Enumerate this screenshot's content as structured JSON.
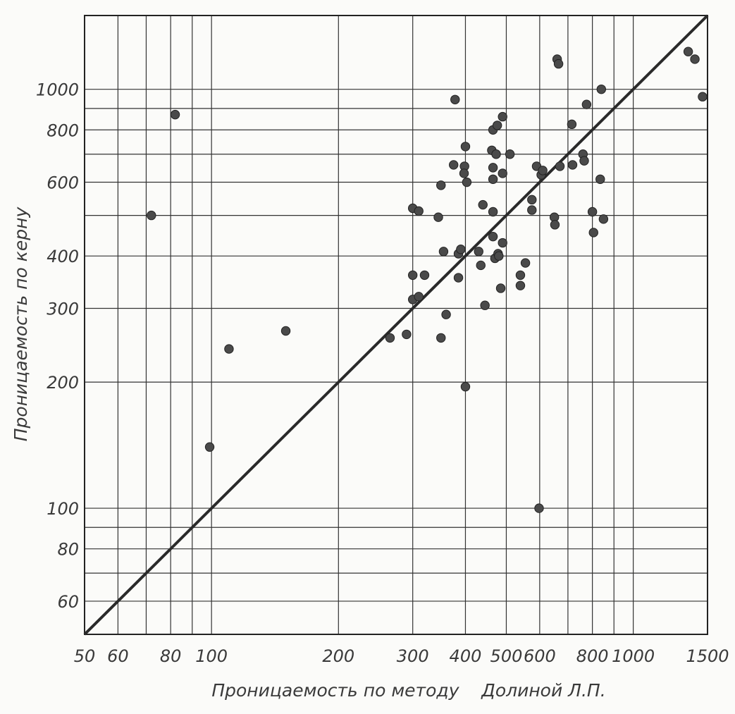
{
  "chart_data": {
    "type": "scatter",
    "title": "",
    "xlabel": "Проницаемость по методу    Долиной Л.П.",
    "ylabel": "Проницаемость по керну",
    "xscale": "log",
    "yscale": "log",
    "xlim": [
      50,
      1500
    ],
    "ylim": [
      50,
      1500
    ],
    "grid": true,
    "x_ticks": [
      "50",
      "60",
      "80",
      "100",
      "200",
      "300",
      "400",
      "500",
      "600",
      "800",
      "1000",
      "1500"
    ],
    "y_ticks": [
      "60",
      "80",
      "100",
      "200",
      "300",
      "400",
      "600",
      "800",
      "1000"
    ],
    "reference_line": {
      "type": "y = x",
      "from": [
        50,
        50
      ],
      "to": [
        1500,
        1500
      ]
    },
    "points": [
      {
        "x": 72,
        "y": 500
      },
      {
        "x": 82,
        "y": 870
      },
      {
        "x": 99,
        "y": 140
      },
      {
        "x": 110,
        "y": 240
      },
      {
        "x": 150,
        "y": 265
      },
      {
        "x": 265,
        "y": 255
      },
      {
        "x": 290,
        "y": 260
      },
      {
        "x": 300,
        "y": 520
      },
      {
        "x": 310,
        "y": 512
      },
      {
        "x": 300,
        "y": 360
      },
      {
        "x": 320,
        "y": 360
      },
      {
        "x": 300,
        "y": 315
      },
      {
        "x": 310,
        "y": 320
      },
      {
        "x": 345,
        "y": 495
      },
      {
        "x": 350,
        "y": 590
      },
      {
        "x": 355,
        "y": 410
      },
      {
        "x": 360,
        "y": 290
      },
      {
        "x": 350,
        "y": 255
      },
      {
        "x": 378,
        "y": 945
      },
      {
        "x": 375,
        "y": 660
      },
      {
        "x": 398,
        "y": 655
      },
      {
        "x": 400,
        "y": 730
      },
      {
        "x": 397,
        "y": 630
      },
      {
        "x": 403,
        "y": 600
      },
      {
        "x": 385,
        "y": 405
      },
      {
        "x": 390,
        "y": 415
      },
      {
        "x": 385,
        "y": 355
      },
      {
        "x": 400,
        "y": 195
      },
      {
        "x": 430,
        "y": 410
      },
      {
        "x": 440,
        "y": 530
      },
      {
        "x": 435,
        "y": 380
      },
      {
        "x": 445,
        "y": 305
      },
      {
        "x": 465,
        "y": 800
      },
      {
        "x": 476,
        "y": 820
      },
      {
        "x": 462,
        "y": 715
      },
      {
        "x": 473,
        "y": 700
      },
      {
        "x": 465,
        "y": 650
      },
      {
        "x": 465,
        "y": 610
      },
      {
        "x": 490,
        "y": 860
      },
      {
        "x": 510,
        "y": 700
      },
      {
        "x": 490,
        "y": 630
      },
      {
        "x": 465,
        "y": 510
      },
      {
        "x": 465,
        "y": 445
      },
      {
        "x": 490,
        "y": 430
      },
      {
        "x": 470,
        "y": 395
      },
      {
        "x": 478,
        "y": 405
      },
      {
        "x": 480,
        "y": 400
      },
      {
        "x": 485,
        "y": 335
      },
      {
        "x": 540,
        "y": 360
      },
      {
        "x": 540,
        "y": 340
      },
      {
        "x": 555,
        "y": 385
      },
      {
        "x": 575,
        "y": 545
      },
      {
        "x": 575,
        "y": 515
      },
      {
        "x": 590,
        "y": 655
      },
      {
        "x": 605,
        "y": 625
      },
      {
        "x": 610,
        "y": 640
      },
      {
        "x": 598,
        "y": 100
      },
      {
        "x": 660,
        "y": 1180
      },
      {
        "x": 665,
        "y": 1150
      },
      {
        "x": 670,
        "y": 655
      },
      {
        "x": 650,
        "y": 495
      },
      {
        "x": 652,
        "y": 475
      },
      {
        "x": 715,
        "y": 825
      },
      {
        "x": 718,
        "y": 660
      },
      {
        "x": 760,
        "y": 700
      },
      {
        "x": 765,
        "y": 675
      },
      {
        "x": 775,
        "y": 920
      },
      {
        "x": 800,
        "y": 510
      },
      {
        "x": 805,
        "y": 455
      },
      {
        "x": 840,
        "y": 1000
      },
      {
        "x": 835,
        "y": 610
      },
      {
        "x": 850,
        "y": 490
      },
      {
        "x": 1350,
        "y": 1230
      },
      {
        "x": 1400,
        "y": 1180
      },
      {
        "x": 1460,
        "y": 960
      }
    ]
  }
}
